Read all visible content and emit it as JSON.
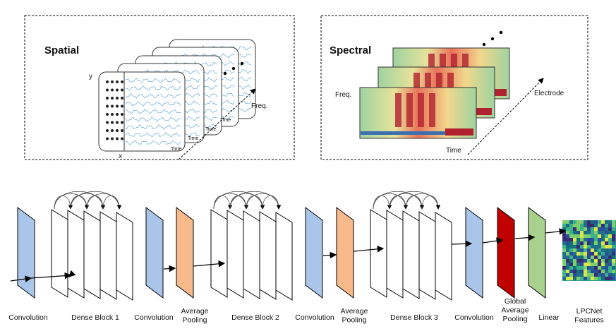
{
  "panels": {
    "spatial": {
      "title": "Spatial",
      "axis_y": "y",
      "axis_x": "x",
      "depth_axis": "Freq.",
      "time_label": "Time"
    },
    "spectral": {
      "title": "Spectral",
      "freq_label": "Freq.",
      "time_label": "Time",
      "depth_axis": "Electrode"
    }
  },
  "pipeline": {
    "labels": [
      {
        "name": "convolution-1-label",
        "lines": [
          "Convolution"
        ]
      },
      {
        "name": "dense-block-1-label",
        "lines": [
          "Dense Block 1"
        ]
      },
      {
        "name": "convolution-2-label",
        "lines": [
          "Convolution"
        ]
      },
      {
        "name": "average-pooling-1-label",
        "lines": [
          "Average",
          "Pooling"
        ]
      },
      {
        "name": "dense-block-2-label",
        "lines": [
          "Dense Block 2"
        ]
      },
      {
        "name": "convolution-3-label",
        "lines": [
          "Convolution"
        ]
      },
      {
        "name": "average-pooling-2-label",
        "lines": [
          "Average",
          "Pooling"
        ]
      },
      {
        "name": "dense-block-3-label",
        "lines": [
          "Dense Block 3"
        ]
      },
      {
        "name": "convolution-4-label",
        "lines": [
          "Convolution"
        ]
      },
      {
        "name": "global-average-pooling-label",
        "lines": [
          "Global",
          "Average",
          "Pooling"
        ]
      },
      {
        "name": "linear-label",
        "lines": [
          "Linear"
        ]
      },
      {
        "name": "lpcnet-features-label",
        "lines": [
          "LPCNet",
          "Features"
        ]
      }
    ]
  },
  "colors": {
    "convolution": "#a9c6ea",
    "pooling": "#f8b98b",
    "global_pooling": "#c00000",
    "linear": "#a9d18e",
    "border": "#000000"
  }
}
